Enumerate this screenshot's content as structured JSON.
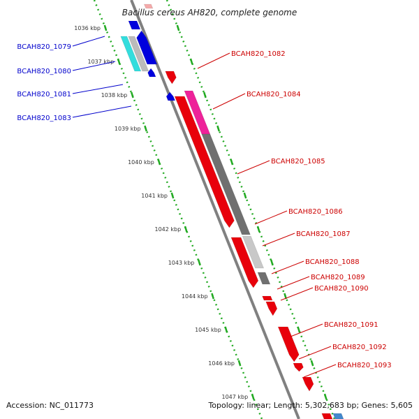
{
  "title": "Bacillus cereus AH820, complete genome",
  "accession": "Accession: NC_011773",
  "summary": "Topology: linear; Length: 5,302,683 bp; Genes: 5,605",
  "colors": {
    "forward": "#e8000b",
    "reverse": "#0000dd",
    "left_label": "#0000cc",
    "right_label": "#cc0000",
    "axis": "#808080",
    "ruler": "#22aa22"
  },
  "ruler_labels": [
    "1036 kbp",
    "1037 kbp",
    "1038 kbp",
    "1039 kbp",
    "1040 kbp",
    "1041 kbp",
    "1042 kbp",
    "1043 kbp",
    "1044 kbp",
    "1045 kbp",
    "1046 kbp",
    "1047 kbp"
  ],
  "left_genes": [
    "BCAH820_1079",
    "BCAH820_1080",
    "BCAH820_1081",
    "BCAH820_1083"
  ],
  "right_genes": [
    "BCAH820_1082",
    "BCAH820_1084",
    "BCAH820_1085",
    "BCAH820_1086",
    "BCAH820_1087",
    "BCAH820_1088",
    "BCAH820_1089",
    "BCAH820_1090",
    "BCAH820_1091",
    "BCAH820_1092",
    "BCAH820_1093"
  ]
}
